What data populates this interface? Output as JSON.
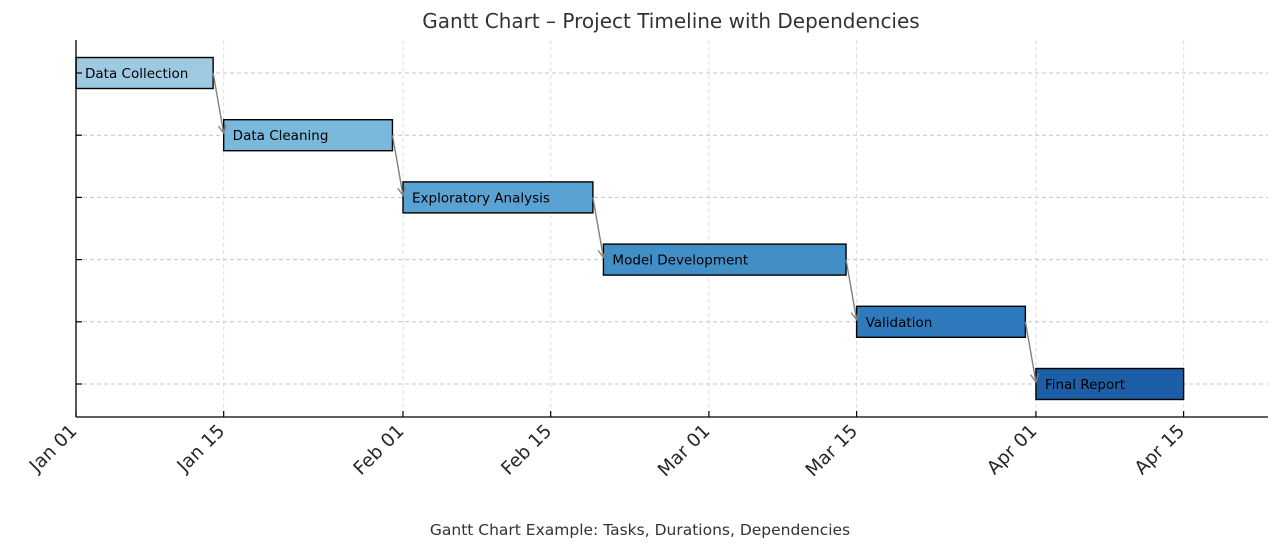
{
  "chart_data": {
    "type": "gantt",
    "title": "Gantt Chart – Project Timeline with Dependencies",
    "caption": "Gantt Chart Example: Tasks, Durations, Dependencies",
    "xlim": [
      "2024-01-01",
      "2024-04-23"
    ],
    "x_ticks": [
      {
        "date": "2024-01-01",
        "label": "Jan 01"
      },
      {
        "date": "2024-01-15",
        "label": "Jan 15"
      },
      {
        "date": "2024-02-01",
        "label": "Feb 01"
      },
      {
        "date": "2024-02-15",
        "label": "Feb 15"
      },
      {
        "date": "2024-03-01",
        "label": "Mar 01"
      },
      {
        "date": "2024-03-15",
        "label": "Mar 15"
      },
      {
        "date": "2024-04-01",
        "label": "Apr 01"
      },
      {
        "date": "2024-04-15",
        "label": "Apr 15"
      }
    ],
    "grid": true,
    "tasks": [
      {
        "name": "Data Collection",
        "start": "2024-01-01",
        "end": "2024-01-14",
        "color": "#9ecae1"
      },
      {
        "name": "Data Cleaning",
        "start": "2024-01-15",
        "end": "2024-01-31",
        "color": "#7ab8dc"
      },
      {
        "name": "Exploratory Analysis",
        "start": "2024-02-01",
        "end": "2024-02-19",
        "color": "#5aa2d3"
      },
      {
        "name": "Model Development",
        "start": "2024-02-20",
        "end": "2024-03-14",
        "color": "#428fc7"
      },
      {
        "name": "Validation",
        "start": "2024-03-15",
        "end": "2024-03-31",
        "color": "#2f79bd"
      },
      {
        "name": "Final Report",
        "start": "2024-04-01",
        "end": "2024-04-15",
        "color": "#1c5fa6"
      }
    ],
    "dependencies": [
      {
        "from": "Data Collection",
        "to": "Data Cleaning"
      },
      {
        "from": "Data Cleaning",
        "to": "Exploratory Analysis"
      },
      {
        "from": "Exploratory Analysis",
        "to": "Model Development"
      },
      {
        "from": "Model Development",
        "to": "Validation"
      },
      {
        "from": "Validation",
        "to": "Final Report"
      }
    ]
  }
}
